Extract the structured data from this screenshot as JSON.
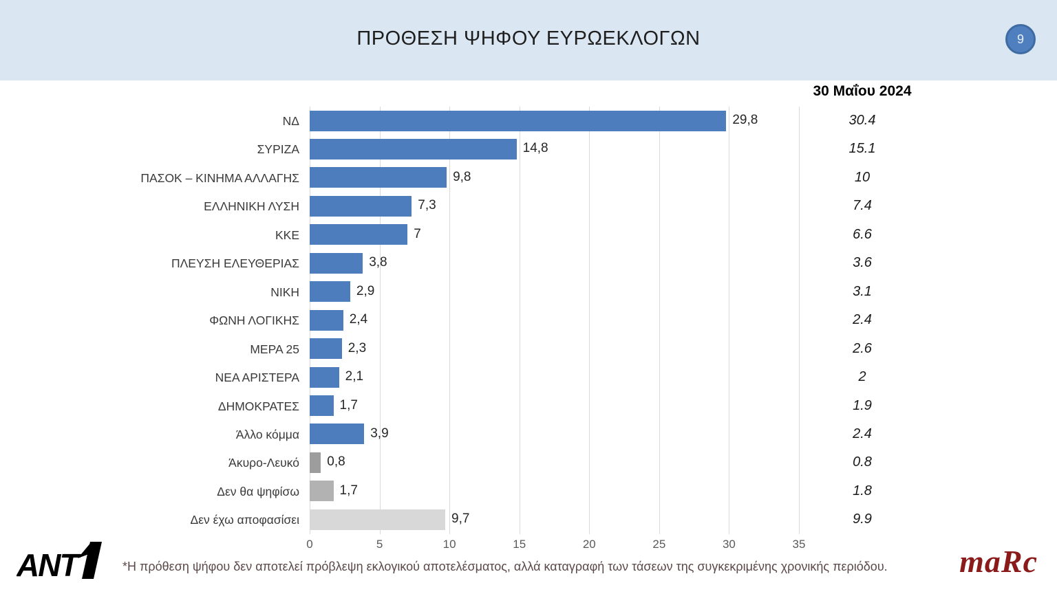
{
  "header": {
    "title": "ΠΡΟΘΕΣΗ ΨΗΦΟΥ ΕΥΡΩΕΚΛΟΓΩΝ",
    "page_number": "9"
  },
  "chart_data": {
    "type": "bar",
    "orientation": "horizontal",
    "title": "ΠΡΟΘΕΣΗ ΨΗΦΟΥ ΕΥΡΩΕΚΛΟΓΩΝ",
    "categories": [
      "ΝΔ",
      "ΣΥΡΙΖΑ",
      "ΠΑΣΟΚ – ΚΙΝΗΜΑ ΑΛΛΑΓΗΣ",
      "ΕΛΛΗΝΙΚΗ ΛΥΣΗ",
      "ΚΚΕ",
      "ΠΛΕΥΣΗ ΕΛΕΥΘΕΡΙΑΣ",
      "ΝΙΚΗ",
      "ΦΩΝΗ ΛΟΓΙΚΗΣ",
      "ΜΕΡΑ 25",
      "ΝΕΑ ΑΡΙΣΤΕΡΑ",
      "ΔΗΜΟΚΡΑΤΕΣ",
      "Άλλο κόμμα",
      "Άκυρο-Λευκό",
      "Δεν θα ψηφίσω",
      "Δεν έχω αποφασίσει"
    ],
    "values": [
      29.8,
      14.8,
      9.8,
      7.3,
      7,
      3.8,
      2.9,
      2.4,
      2.3,
      2.1,
      1.7,
      3.9,
      0.8,
      1.7,
      9.7
    ],
    "value_labels": [
      "29,8",
      "14,8",
      "9,8",
      "7,3",
      "7",
      "3,8",
      "2,9",
      "2,4",
      "2,3",
      "2,1",
      "1,7",
      "3,9",
      "0,8",
      "1,7",
      "9,7"
    ],
    "bar_styles": [
      "blue",
      "blue",
      "blue",
      "blue",
      "blue",
      "blue",
      "blue",
      "blue",
      "blue",
      "blue",
      "blue",
      "blue",
      "gray_dark",
      "gray_mid",
      "gray_light"
    ],
    "xlabel": "",
    "ylabel": "",
    "xlim": [
      0,
      35
    ],
    "xticks": [
      "0",
      "5",
      "10",
      "15",
      "20",
      "25",
      "30",
      "35"
    ],
    "grid": true,
    "legend": false,
    "comparison": {
      "header": "30 Μαΐου 2024",
      "values": [
        "30.4",
        "15.1",
        "10",
        "7.4",
        "6.6",
        "3.6",
        "3.1",
        "2.4",
        "2.6",
        "2",
        "1.9",
        "2.4",
        "0.8",
        "1.8",
        "9.9"
      ]
    }
  },
  "colors": {
    "bar_blue": "#4e7dbe",
    "bar_gray_dark": "#9d9d9d",
    "bar_gray_mid": "#b2b2b2",
    "bar_gray_light": "#d8d8d8",
    "gridline": "#d9d9d9",
    "header_band": "#dae6f1",
    "circle_fill": "#4f7fbe",
    "circle_border": "#3f6ba3",
    "footnote_text": "#5c4949",
    "marc_red": "#8b1a1a"
  },
  "footer": {
    "ant1_text": "ANT",
    "footnote": "*Η πρόθεση ψήφου δεν αποτελεί πρόβλεψη εκλογικού αποτελέσματος, αλλά καταγραφή των τάσεων της συγκεκριμένης χρονικής περιόδου.",
    "marc_text": "maRc"
  }
}
